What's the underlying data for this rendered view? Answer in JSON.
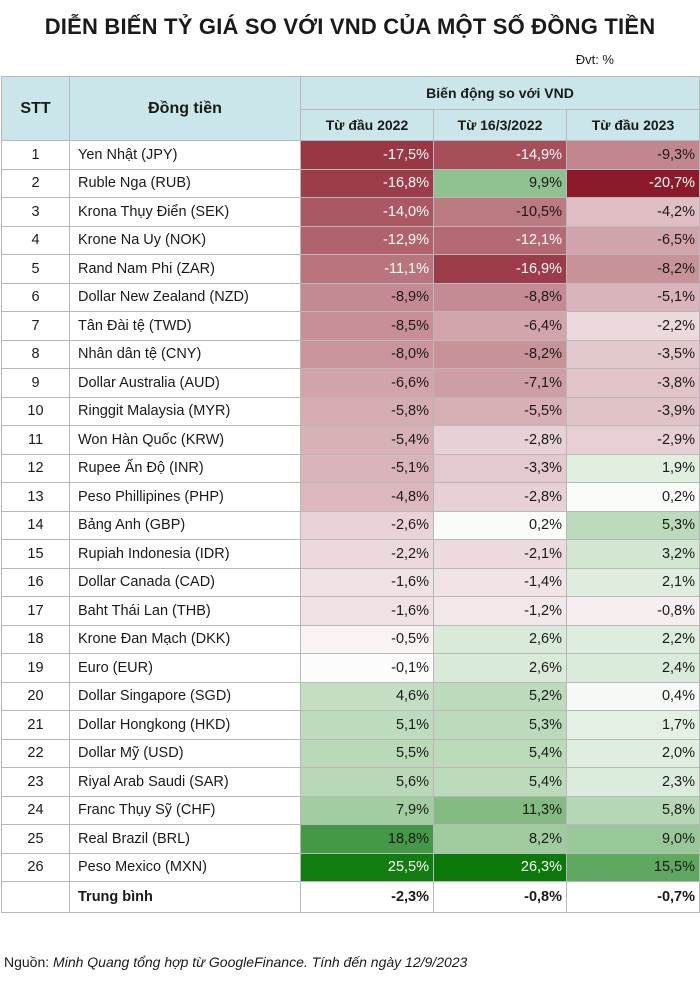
{
  "header": {
    "title": "DIỄN BIẾN TỶ GIÁ SO VỚI VND CỦA MỘT SỐ ĐỒNG TIỀN",
    "unit": "Đvt: %"
  },
  "footer": {
    "source_label": "Nguồn:",
    "source_text": "Minh Quang tổng hợp từ GoogleFinance.  Tính đến ngày 12/9/2023"
  },
  "colors": {
    "header_bg": "#cbe6ea",
    "negative_max": "#8b1a2a",
    "positive_max": "#0b7a0b",
    "neutral": "#ffffff"
  },
  "chart_data": {
    "type": "table",
    "title": "DIỄN BIẾN TỶ GIÁ SO VỚI VND CỦA MỘT SỐ ĐỒNG TIỀN",
    "unit": "Đvt: %",
    "columns": {
      "stt": "STT",
      "currency": "Đồng tiền",
      "group": "Biến động so với VND",
      "periods": [
        "Từ đầu 2022",
        "Từ 16/3/2022",
        "Từ đầu 2023"
      ]
    },
    "rows": [
      {
        "stt": "1",
        "name": "Yen Nhật (JPY)",
        "values": [
          -17.5,
          -14.9,
          -9.3
        ]
      },
      {
        "stt": "2",
        "name": "Ruble Nga (RUB)",
        "values": [
          -16.8,
          9.9,
          -20.7
        ]
      },
      {
        "stt": "3",
        "name": "Krona Thụy Điển (SEK)",
        "values": [
          -14.0,
          -10.5,
          -4.2
        ]
      },
      {
        "stt": "4",
        "name": "Krone Na Uy (NOK)",
        "values": [
          -12.9,
          -12.1,
          -6.5
        ]
      },
      {
        "stt": "5",
        "name": "Rand Nam Phi (ZAR)",
        "values": [
          -11.1,
          -16.9,
          -8.2
        ]
      },
      {
        "stt": "6",
        "name": "Dollar New Zealand (NZD)",
        "values": [
          -8.9,
          -8.8,
          -5.1
        ]
      },
      {
        "stt": "7",
        "name": "Tân Đài tệ (TWD)",
        "values": [
          -8.5,
          -6.4,
          -2.2
        ]
      },
      {
        "stt": "8",
        "name": "Nhân dân tệ (CNY)",
        "values": [
          -8.0,
          -8.2,
          -3.5
        ]
      },
      {
        "stt": "9",
        "name": "Dollar Australia (AUD)",
        "values": [
          -6.6,
          -7.1,
          -3.8
        ]
      },
      {
        "stt": "10",
        "name": "Ringgit Malaysia (MYR)",
        "values": [
          -5.8,
          -5.5,
          -3.9
        ]
      },
      {
        "stt": "11",
        "name": "Won Hàn Quốc (KRW)",
        "values": [
          -5.4,
          -2.8,
          -2.9
        ]
      },
      {
        "stt": "12",
        "name": "Rupee Ấn Độ (INR)",
        "values": [
          -5.1,
          -3.3,
          1.9
        ]
      },
      {
        "stt": "13",
        "name": "Peso Phillipines (PHP)",
        "values": [
          -4.8,
          -2.8,
          0.2
        ]
      },
      {
        "stt": "14",
        "name": "Bảng Anh (GBP)",
        "values": [
          -2.6,
          0.2,
          5.3
        ]
      },
      {
        "stt": "15",
        "name": "Rupiah Indonesia (IDR)",
        "values": [
          -2.2,
          -2.1,
          3.2
        ]
      },
      {
        "stt": "16",
        "name": "Dollar Canada (CAD)",
        "values": [
          -1.6,
          -1.4,
          2.1
        ]
      },
      {
        "stt": "17",
        "name": "Baht Thái Lan (THB)",
        "values": [
          -1.6,
          -1.2,
          -0.8
        ]
      },
      {
        "stt": "18",
        "name": "Krone Đan Mạch (DKK)",
        "values": [
          -0.5,
          2.6,
          2.2
        ]
      },
      {
        "stt": "19",
        "name": "Euro (EUR)",
        "values": [
          -0.1,
          2.6,
          2.4
        ]
      },
      {
        "stt": "20",
        "name": "Dollar Singapore (SGD)",
        "values": [
          4.6,
          5.2,
          0.4
        ]
      },
      {
        "stt": "21",
        "name": "Dollar Hongkong (HKD)",
        "values": [
          5.1,
          5.3,
          1.7
        ]
      },
      {
        "stt": "22",
        "name": "Dollar Mỹ (USD)",
        "values": [
          5.5,
          5.4,
          2.0
        ]
      },
      {
        "stt": "23",
        "name": "Riyal Arab Saudi (SAR)",
        "values": [
          5.6,
          5.4,
          2.3
        ]
      },
      {
        "stt": "24",
        "name": "Franc Thụy Sỹ (CHF)",
        "values": [
          7.9,
          11.3,
          5.8
        ]
      },
      {
        "stt": "25",
        "name": "Real Brazil (BRL)",
        "values": [
          18.8,
          8.2,
          9.0
        ]
      },
      {
        "stt": "26",
        "name": "Peso Mexico (MXN)",
        "values": [
          25.5,
          26.3,
          15.5
        ]
      }
    ],
    "average": {
      "label": "Trung bình",
      "values": [
        -2.3,
        -0.8,
        -0.7
      ]
    }
  }
}
